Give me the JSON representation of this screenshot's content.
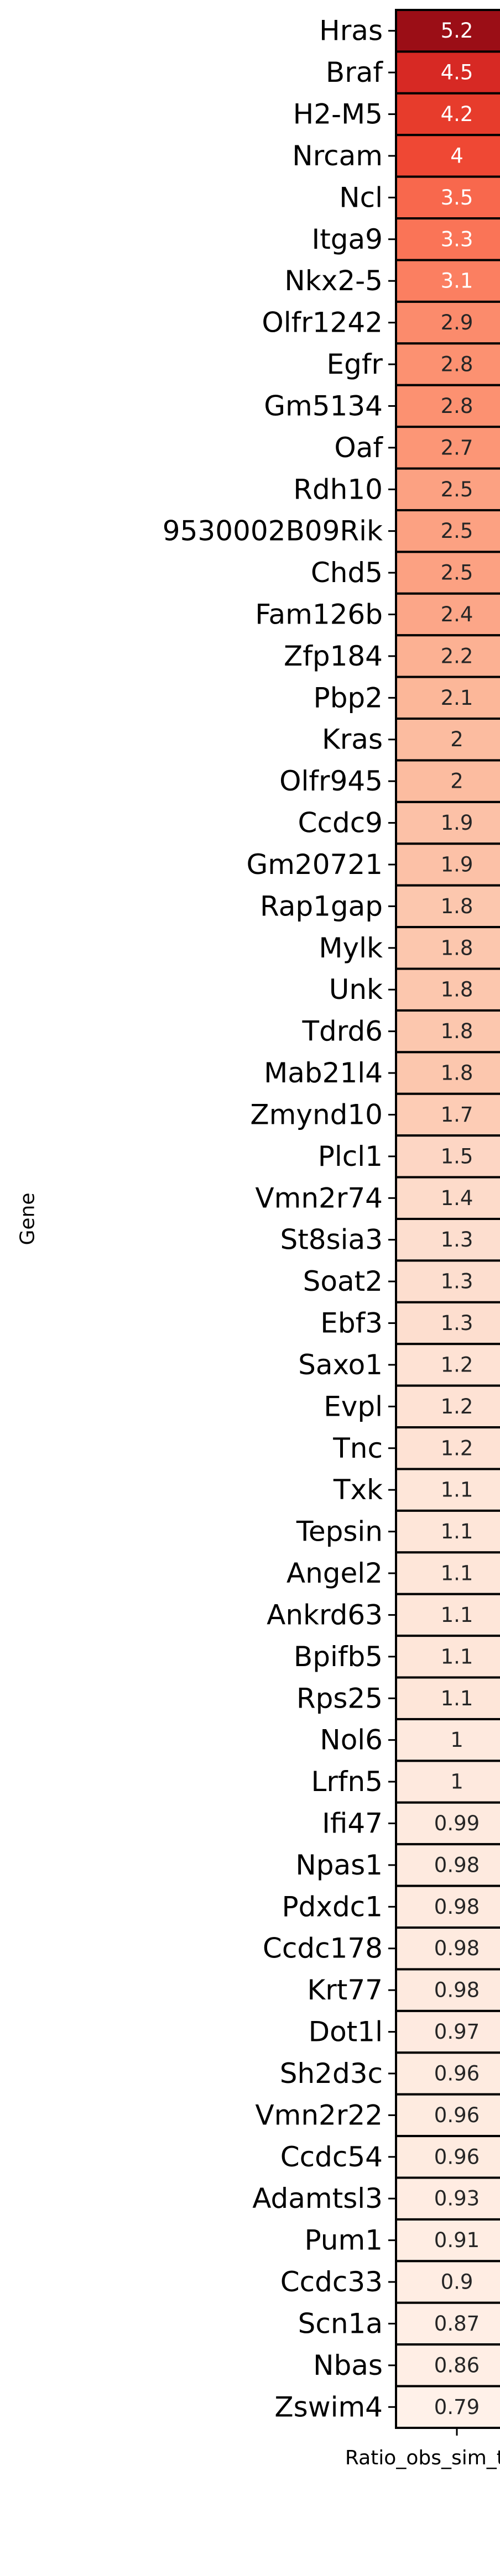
{
  "chart_data": {
    "type": "heatmap",
    "ylabel": "Gene",
    "xlabel": "Ratio_obs_sim_top_vol",
    "colormap": "Reds",
    "color_range": [
      0.79,
      5.2
    ],
    "grid": false,
    "legend": "none",
    "rows": [
      {
        "gene": "Hras",
        "value": 5.2,
        "label": "5.2"
      },
      {
        "gene": "Braf",
        "value": 4.5,
        "label": "4.5"
      },
      {
        "gene": "H2-M5",
        "value": 4.2,
        "label": "4.2"
      },
      {
        "gene": "Nrcam",
        "value": 4.0,
        "label": "4"
      },
      {
        "gene": "Ncl",
        "value": 3.5,
        "label": "3.5"
      },
      {
        "gene": "Itga9",
        "value": 3.3,
        "label": "3.3"
      },
      {
        "gene": "Nkx2-5",
        "value": 3.1,
        "label": "3.1"
      },
      {
        "gene": "Olfr1242",
        "value": 2.9,
        "label": "2.9"
      },
      {
        "gene": "Egfr",
        "value": 2.8,
        "label": "2.8"
      },
      {
        "gene": "Gm5134",
        "value": 2.8,
        "label": "2.8"
      },
      {
        "gene": "Oaf",
        "value": 2.7,
        "label": "2.7"
      },
      {
        "gene": "Rdh10",
        "value": 2.5,
        "label": "2.5"
      },
      {
        "gene": "9530002B09Rik",
        "value": 2.5,
        "label": "2.5"
      },
      {
        "gene": "Chd5",
        "value": 2.5,
        "label": "2.5"
      },
      {
        "gene": "Fam126b",
        "value": 2.4,
        "label": "2.4"
      },
      {
        "gene": "Zfp184",
        "value": 2.2,
        "label": "2.2"
      },
      {
        "gene": "Pbp2",
        "value": 2.1,
        "label": "2.1"
      },
      {
        "gene": "Kras",
        "value": 2.0,
        "label": "2"
      },
      {
        "gene": "Olfr945",
        "value": 2.0,
        "label": "2"
      },
      {
        "gene": "Ccdc9",
        "value": 1.9,
        "label": "1.9"
      },
      {
        "gene": "Gm20721",
        "value": 1.9,
        "label": "1.9"
      },
      {
        "gene": "Rap1gap",
        "value": 1.8,
        "label": "1.8"
      },
      {
        "gene": "Mylk",
        "value": 1.8,
        "label": "1.8"
      },
      {
        "gene": "Unk",
        "value": 1.8,
        "label": "1.8"
      },
      {
        "gene": "Tdrd6",
        "value": 1.8,
        "label": "1.8"
      },
      {
        "gene": "Mab21l4",
        "value": 1.8,
        "label": "1.8"
      },
      {
        "gene": "Zmynd10",
        "value": 1.7,
        "label": "1.7"
      },
      {
        "gene": "Plcl1",
        "value": 1.5,
        "label": "1.5"
      },
      {
        "gene": "Vmn2r74",
        "value": 1.4,
        "label": "1.4"
      },
      {
        "gene": "St8sia3",
        "value": 1.3,
        "label": "1.3"
      },
      {
        "gene": "Soat2",
        "value": 1.3,
        "label": "1.3"
      },
      {
        "gene": "Ebf3",
        "value": 1.3,
        "label": "1.3"
      },
      {
        "gene": "Saxo1",
        "value": 1.2,
        "label": "1.2"
      },
      {
        "gene": "Evpl",
        "value": 1.2,
        "label": "1.2"
      },
      {
        "gene": "Tnc",
        "value": 1.2,
        "label": "1.2"
      },
      {
        "gene": "Txk",
        "value": 1.1,
        "label": "1.1"
      },
      {
        "gene": "Tepsin",
        "value": 1.1,
        "label": "1.1"
      },
      {
        "gene": "Angel2",
        "value": 1.1,
        "label": "1.1"
      },
      {
        "gene": "Ankrd63",
        "value": 1.1,
        "label": "1.1"
      },
      {
        "gene": "Bpifb5",
        "value": 1.1,
        "label": "1.1"
      },
      {
        "gene": "Rps25",
        "value": 1.1,
        "label": "1.1"
      },
      {
        "gene": "Nol6",
        "value": 1.0,
        "label": "1"
      },
      {
        "gene": "Lrfn5",
        "value": 1.0,
        "label": "1"
      },
      {
        "gene": "Ifi47",
        "value": 0.99,
        "label": "0.99"
      },
      {
        "gene": "Npas1",
        "value": 0.98,
        "label": "0.98"
      },
      {
        "gene": "Pdxdc1",
        "value": 0.98,
        "label": "0.98"
      },
      {
        "gene": "Ccdc178",
        "value": 0.98,
        "label": "0.98"
      },
      {
        "gene": "Krt77",
        "value": 0.98,
        "label": "0.98"
      },
      {
        "gene": "Dot1l",
        "value": 0.97,
        "label": "0.97"
      },
      {
        "gene": "Sh2d3c",
        "value": 0.96,
        "label": "0.96"
      },
      {
        "gene": "Vmn2r22",
        "value": 0.96,
        "label": "0.96"
      },
      {
        "gene": "Ccdc54",
        "value": 0.96,
        "label": "0.96"
      },
      {
        "gene": "Adamtsl3",
        "value": 0.93,
        "label": "0.93"
      },
      {
        "gene": "Pum1",
        "value": 0.91,
        "label": "0.91"
      },
      {
        "gene": "Ccdc33",
        "value": 0.9,
        "label": "0.9"
      },
      {
        "gene": "Scn1a",
        "value": 0.87,
        "label": "0.87"
      },
      {
        "gene": "Nbas",
        "value": 0.86,
        "label": "0.86"
      },
      {
        "gene": "Zswim4",
        "value": 0.79,
        "label": "0.79"
      }
    ]
  }
}
